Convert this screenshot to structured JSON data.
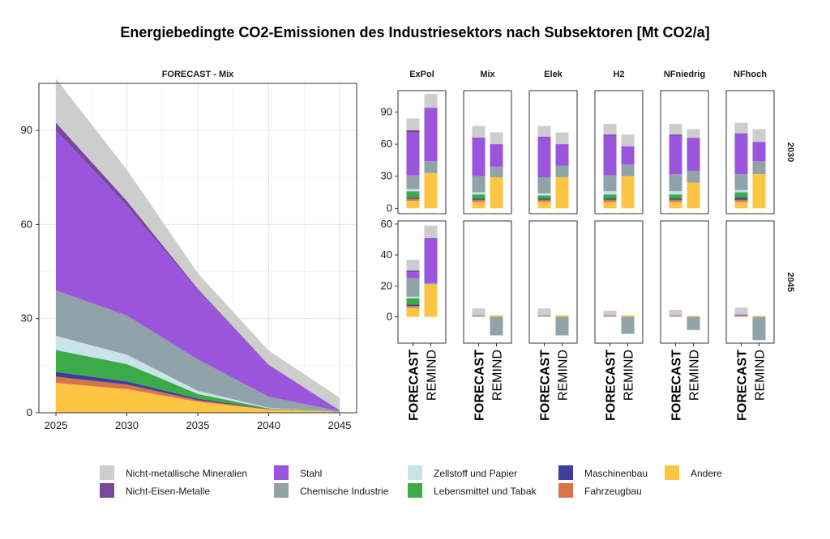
{
  "title": "Energiebedingte CO2-Emissionen des Industriesektors nach Subsektoren [Mt CO2/a]",
  "colors": {
    "Andere": "#fec545",
    "Fahrzeugbau": "#d8744c",
    "Maschinenbau": "#3d3d9e",
    "Lebensmittel und Tabak": "#3daa4a",
    "Zellstoff und Papier": "#c8e4ea",
    "Chemische Industrie": "#8fa3a8",
    "Stahl": "#9b55dd",
    "Nicht-Eisen-Metalle": "#7a479c",
    "Nicht-metallische Mineralien": "#cdcdcd"
  },
  "legend": {
    "items": [
      "Nicht-metallische Mineralien",
      "Stahl",
      "Zellstoff und Papier",
      "Maschinenbau",
      "Andere",
      "Nicht-Eisen-Metalle",
      "Chemische Industrie",
      "Lebensmittel und Tabak",
      "Fahrzeugbau"
    ]
  },
  "chart_data": [
    {
      "type": "area",
      "title": "FORECAST - Mix",
      "x": [
        2025,
        2030,
        2035,
        2040,
        2045
      ],
      "ylim": [
        0,
        105
      ],
      "yticks": [
        0,
        30,
        60,
        90
      ],
      "grid": true,
      "series": [
        {
          "name": "Andere",
          "values": [
            9.5,
            7.5,
            3.5,
            1.0,
            0.3
          ]
        },
        {
          "name": "Fahrzeugbau",
          "values": [
            2.0,
            1.5,
            0.5,
            0.1,
            0.0
          ]
        },
        {
          "name": "Maschinenbau",
          "values": [
            1.5,
            1.0,
            0.5,
            0.1,
            0.0
          ]
        },
        {
          "name": "Lebensmittel und Tabak",
          "values": [
            7.0,
            5.5,
            1.5,
            0.2,
            0.0
          ]
        },
        {
          "name": "Zellstoff und Papier",
          "values": [
            4.5,
            3.0,
            1.0,
            0.2,
            0.0
          ]
        },
        {
          "name": "Chemische Industrie",
          "values": [
            14.5,
            12.5,
            10.0,
            3.5,
            0.2
          ]
        },
        {
          "name": "Stahl",
          "values": [
            51.0,
            35.0,
            22.0,
            10.0,
            0.3
          ]
        },
        {
          "name": "Nicht-Eisen-Metalle",
          "values": [
            2.5,
            1.5,
            0.5,
            0.2,
            0.0
          ]
        },
        {
          "name": "Nicht-metallische Mineralien",
          "values": [
            14.0,
            10.0,
            5.0,
            4.5,
            4.0
          ]
        }
      ]
    },
    {
      "type": "bar",
      "stacked": true,
      "columns": [
        "ExPol",
        "Mix",
        "Elek",
        "H2",
        "NFniedrig",
        "NFhoch"
      ],
      "rows": [
        "2030",
        "2045"
      ],
      "categories": [
        "FORECAST",
        "REMIND"
      ],
      "panels": {
        "2030": {
          "ylim": [
            -5,
            110
          ],
          "yticks": [
            0,
            30,
            60,
            90
          ],
          "ExPol": {
            "FORECAST": {
              "Andere": 7,
              "Fahrzeugbau": 2,
              "Maschinenbau": 1,
              "Lebensmittel und Tabak": 6,
              "Zellstoff und Papier": 2,
              "Chemische Industrie": 13,
              "Stahl": 40,
              "Nicht-Eisen-Metalle": 2,
              "Nicht-metallische Mineralien": 11
            },
            "REMIND": {
              "Andere": 33,
              "Chemische Industrie": 11,
              "Stahl": 50,
              "Nicht-metallische Mineralien": 13
            }
          },
          "Mix": {
            "FORECAST": {
              "Andere": 6,
              "Fahrzeugbau": 2,
              "Maschinenbau": 1,
              "Lebensmittel und Tabak": 4,
              "Zellstoff und Papier": 2,
              "Chemische Industrie": 15,
              "Stahl": 35,
              "Nicht-Eisen-Metalle": 1,
              "Nicht-metallische Mineralien": 11
            },
            "REMIND": {
              "Andere": 29,
              "Chemische Industrie": 10,
              "Stahl": 21,
              "Nicht-metallische Mineralien": 11
            }
          },
          "Elek": {
            "FORECAST": {
              "Andere": 6,
              "Fahrzeugbau": 2,
              "Maschinenbau": 1,
              "Lebensmittel und Tabak": 3,
              "Zellstoff und Papier": 2,
              "Chemische Industrie": 15,
              "Stahl": 37,
              "Nicht-Eisen-Metalle": 1,
              "Nicht-metallische Mineralien": 10
            },
            "REMIND": {
              "Andere": 29,
              "Chemische Industrie": 11,
              "Stahl": 20,
              "Nicht-metallische Mineralien": 11
            }
          },
          "H2": {
            "FORECAST": {
              "Andere": 6,
              "Fahrzeugbau": 2,
              "Maschinenbau": 1,
              "Lebensmittel und Tabak": 4,
              "Zellstoff und Papier": 3,
              "Chemische Industrie": 15,
              "Stahl": 37,
              "Nicht-Eisen-Metalle": 1,
              "Nicht-metallische Mineralien": 10
            },
            "REMIND": {
              "Andere": 30,
              "Chemische Industrie": 11,
              "Stahl": 17,
              "Nicht-metallische Mineralien": 11
            }
          },
          "NFniedrig": {
            "FORECAST": {
              "Andere": 6,
              "Fahrzeugbau": 2,
              "Maschinenbau": 1,
              "Lebensmittel und Tabak": 4,
              "Zellstoff und Papier": 3,
              "Chemische Industrie": 16,
              "Stahl": 36,
              "Nicht-Eisen-Metalle": 1,
              "Nicht-metallische Mineralien": 10
            },
            "REMIND": {
              "Andere": 24,
              "Chemische Industrie": 11,
              "Stahl": 31,
              "Nicht-metallische Mineralien": 8
            }
          },
          "NFhoch": {
            "FORECAST": {
              "Andere": 6,
              "Fahrzeugbau": 2,
              "Maschinenbau": 2,
              "Lebensmittel und Tabak": 5,
              "Zellstoff und Papier": 2,
              "Chemische Industrie": 15,
              "Stahl": 37,
              "Nicht-Eisen-Metalle": 1,
              "Nicht-metallische Mineralien": 10
            },
            "REMIND": {
              "Andere": 32,
              "Chemische Industrie": 12,
              "Stahl": 18,
              "Nicht-metallische Mineralien": 12
            }
          }
        },
        "2045": {
          "ylim": [
            -17,
            62
          ],
          "yticks": [
            0,
            20,
            40,
            60
          ],
          "ExPol": {
            "FORECAST": {
              "Andere": 6,
              "Fahrzeugbau": 1,
              "Maschinenbau": 1,
              "Lebensmittel und Tabak": 4,
              "Zellstoff und Papier": 1,
              "Chemische Industrie": 12,
              "Stahl": 4,
              "Nicht-Eisen-Metalle": 1,
              "Nicht-metallische Mineralien": 7
            },
            "REMIND": {
              "Andere": 21,
              "Chemische Industrie": 1,
              "Stahl": 29,
              "Nicht-metallische Mineralien": 8
            }
          },
          "Mix": {
            "FORECAST": {
              "Andere": 0.3,
              "Fahrzeugbau": 0.2,
              "Chemische Industrie": 0.2,
              "Stahl": 0.3,
              "Nicht-metallische Mineralien": 4.5
            },
            "REMIND": {
              "Andere": 1,
              "Chemische Industrie": -12
            }
          },
          "Elek": {
            "FORECAST": {
              "Andere": 0.3,
              "Fahrzeugbau": 0.2,
              "Chemische Industrie": 0.2,
              "Stahl": 0.3,
              "Nicht-metallische Mineralien": 4.5
            },
            "REMIND": {
              "Andere": 1,
              "Chemische Industrie": -12
            }
          },
          "H2": {
            "FORECAST": {
              "Andere": 0.3,
              "Fahrzeugbau": 0.2,
              "Chemische Industrie": 0.2,
              "Stahl": 0.3,
              "Nicht-metallische Mineralien": 3
            },
            "REMIND": {
              "Andere": 1,
              "Chemische Industrie": -11
            }
          },
          "NFniedrig": {
            "FORECAST": {
              "Andere": 0.3,
              "Fahrzeugbau": 0.2,
              "Chemische Industrie": 0.2,
              "Stahl": 0.3,
              "Nicht-metallische Mineralien": 3.5
            },
            "REMIND": {
              "Andere": 0.5,
              "Chemische Industrie": -8.5
            }
          },
          "NFhoch": {
            "FORECAST": {
              "Andere": 0.3,
              "Fahrzeugbau": 0.2,
              "Chemische Industrie": 0.2,
              "Stahl": 0.8,
              "Nicht-metallische Mineralien": 4.5
            },
            "REMIND": {
              "Andere": 0.5,
              "Chemische Industrie": -15
            }
          }
        }
      }
    }
  ]
}
